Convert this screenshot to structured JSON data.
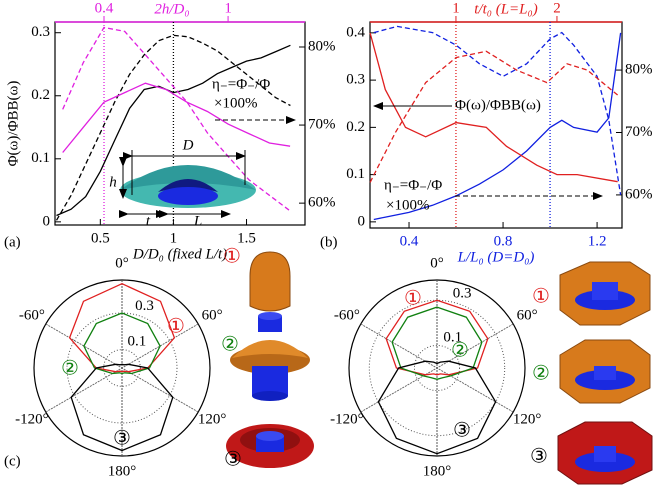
{
  "chart_data": [
    {
      "type": "line",
      "panel_label": "(a)",
      "xlabel": "D/D₀ (fixed L/t)",
      "x2label": "2h/D₀",
      "ylabel": "Φ(ω)/ΦBB(ω)",
      "x2_color": "#e020e0",
      "xlabel_color": "#000000",
      "xlim": [
        0.19,
        1.9
      ],
      "x2lim": [
        0.163,
        1.372
      ],
      "ylim": [
        -0.005,
        0.317
      ],
      "y2lim": [
        57.2,
        83.2
      ],
      "xticks": [
        0.5,
        1,
        1.5
      ],
      "x2ticks": [
        0.4,
        1
      ],
      "yticks": [
        0,
        0.1,
        0.2,
        0.3
      ],
      "y2ticks": [
        {
          "value": 60,
          "label": "60%"
        },
        {
          "value": 70,
          "label": "70%"
        },
        {
          "value": 80,
          "label": "80%"
        }
      ],
      "series": [
        {
          "color": "#000000",
          "style": "solid",
          "axis": "y",
          "xaxis": "x",
          "x": [
            0.2,
            0.3,
            0.4,
            0.5,
            0.6,
            0.7,
            0.8,
            0.9,
            1.0,
            1.1,
            1.2,
            1.3,
            1.4,
            1.5,
            1.6,
            1.7,
            1.8
          ],
          "values": [
            0.01,
            0.02,
            0.04,
            0.08,
            0.13,
            0.18,
            0.21,
            0.215,
            0.205,
            0.21,
            0.22,
            0.235,
            0.245,
            0.255,
            0.26,
            0.27,
            0.28
          ]
        },
        {
          "color": "#000000",
          "style": "dashed",
          "axis": "y2",
          "xaxis": "x",
          "x": [
            0.2,
            0.3,
            0.4,
            0.5,
            0.6,
            0.7,
            0.8,
            0.9,
            1.0,
            1.1,
            1.2,
            1.3,
            1.4,
            1.5,
            1.6,
            1.7,
            1.8
          ],
          "values": [
            57.8,
            61,
            65,
            69,
            73,
            76.5,
            79,
            80.8,
            81.5,
            81.3,
            80.5,
            79.5,
            78,
            76.5,
            75,
            73.5,
            72.5
          ]
        },
        {
          "color": "#e020e0",
          "style": "solid",
          "axis": "y",
          "xaxis": "x2",
          "x": [
            0.2,
            0.3,
            0.4,
            0.5,
            0.6,
            0.7,
            0.8,
            0.9,
            1.0,
            1.1,
            1.2,
            1.3
          ],
          "values": [
            0.11,
            0.15,
            0.19,
            0.205,
            0.22,
            0.21,
            0.19,
            0.175,
            0.155,
            0.14,
            0.125,
            0.12
          ]
        },
        {
          "color": "#e020e0",
          "style": "dashed",
          "axis": "y2",
          "xaxis": "x2",
          "x": [
            0.2,
            0.3,
            0.4,
            0.5,
            0.6,
            0.7,
            0.8,
            0.9,
            1.0,
            1.1,
            1.2,
            1.3
          ],
          "values": [
            72,
            78,
            82.5,
            82,
            79,
            76,
            73,
            69,
            66,
            63,
            61,
            59
          ]
        }
      ],
      "reference_lines": [
        {
          "axis": "x",
          "value": 1,
          "color": "#000000"
        },
        {
          "axis": "x2",
          "value": 0.4,
          "color": "#e020e0"
        }
      ],
      "annotations": [
        "η₋=Φ₋/Φ",
        "×100%"
      ],
      "inset_labels": [
        "D",
        "h",
        "t",
        "L"
      ]
    },
    {
      "type": "line",
      "panel_label": "(b)",
      "xlabel": "L/L₀ (D=D₀)",
      "x2label": "t/t₀ (L=L₀)",
      "x2_color": "#e02020",
      "xlabel_color": "#1020e0",
      "xlim": [
        0.234,
        1.306
      ],
      "x2lim": [
        0.149,
        2.644
      ],
      "ylim": [
        -0.013,
        0.423
      ],
      "y2lim": [
        54.7,
        87.7
      ],
      "xticks": [
        0.4,
        0.8,
        1.2
      ],
      "x2ticks": [
        1,
        2
      ],
      "yticks": [
        0,
        0.1,
        0.2,
        0.3,
        0.4
      ],
      "y2ticks": [
        {
          "value": 60,
          "label": "60%"
        },
        {
          "value": 70,
          "label": "70%"
        },
        {
          "value": 80,
          "label": "80%"
        }
      ],
      "series": [
        {
          "color": "#1020e0",
          "style": "solid",
          "axis": "y",
          "xaxis": "x",
          "x": [
            0.25,
            0.3,
            0.4,
            0.5,
            0.6,
            0.7,
            0.8,
            0.9,
            1.0,
            1.05,
            1.1,
            1.2,
            1.25,
            1.3
          ],
          "values": [
            0.005,
            0.01,
            0.02,
            0.035,
            0.055,
            0.08,
            0.11,
            0.15,
            0.2,
            0.215,
            0.2,
            0.19,
            0.22,
            0.4
          ]
        },
        {
          "color": "#1020e0",
          "style": "dashed",
          "axis": "y2",
          "xaxis": "x",
          "x": [
            0.25,
            0.35,
            0.5,
            0.6,
            0.7,
            0.8,
            0.9,
            1.0,
            1.05,
            1.1,
            1.2,
            1.25,
            1.3
          ],
          "values": [
            86,
            87,
            86,
            84,
            81,
            79,
            81,
            85,
            86,
            84,
            79,
            72,
            60
          ]
        },
        {
          "color": "#e02020",
          "style": "solid",
          "axis": "y",
          "xaxis": "x2",
          "x": [
            0.15,
            0.3,
            0.5,
            0.7,
            1.0,
            1.3,
            1.5,
            1.8,
            2.0,
            2.2,
            2.6
          ],
          "values": [
            0.4,
            0.28,
            0.2,
            0.18,
            0.21,
            0.2,
            0.16,
            0.12,
            0.1,
            0.1,
            0.085
          ]
        },
        {
          "color": "#e02020",
          "style": "dashed",
          "axis": "y2",
          "xaxis": "x2",
          "x": [
            0.15,
            0.4,
            0.7,
            1.0,
            1.3,
            1.6,
            1.9,
            2.1,
            2.3,
            2.6
          ],
          "values": [
            62,
            70,
            78,
            82,
            83,
            80,
            78,
            81,
            80,
            76
          ]
        }
      ],
      "reference_lines": [
        {
          "axis": "x2",
          "value": 1,
          "color": "#e02020"
        },
        {
          "axis": "x",
          "value": 1,
          "color": "#1020e0"
        }
      ],
      "annotations": [
        "Φ(ω)/ΦBB(ω)",
        "η₋=Φ₋/Φ",
        "×100%"
      ]
    },
    {
      "type": "polar",
      "panel_label": "(c)",
      "rlim": [
        0,
        0.48
      ],
      "rticks": [
        0.1,
        0.3
      ],
      "thetaticks": [
        {
          "value": 0,
          "label": "0°"
        },
        {
          "value": 60,
          "label": "60°"
        },
        {
          "value": 120,
          "label": "120°"
        },
        {
          "value": 180,
          "label": "180°"
        },
        {
          "value": -120,
          "label": "-120°"
        },
        {
          "value": -60,
          "label": "-60°"
        }
      ],
      "theta": [
        0,
        30,
        60,
        90,
        120,
        150,
        180,
        210,
        240,
        270,
        300,
        330
      ],
      "series": [
        {
          "name": "①",
          "color": "#e02020",
          "values": [
            0.46,
            0.42,
            0.33,
            0.14,
            0.04,
            0.02,
            0.02,
            0.02,
            0.04,
            0.14,
            0.33,
            0.42
          ]
        },
        {
          "name": "②",
          "color": "#108010",
          "values": [
            0.3,
            0.28,
            0.24,
            0.15,
            0.06,
            0.03,
            0.03,
            0.03,
            0.06,
            0.15,
            0.24,
            0.28
          ]
        },
        {
          "name": "③",
          "color": "#000000",
          "values": [
            0.02,
            0.02,
            0.04,
            0.14,
            0.32,
            0.42,
            0.45,
            0.42,
            0.32,
            0.14,
            0.04,
            0.02
          ]
        }
      ],
      "render_labels": [
        "①",
        "②",
        "③"
      ]
    },
    {
      "type": "polar",
      "rlim": [
        0,
        0.39
      ],
      "rticks": [
        0.1,
        0.3
      ],
      "thetaticks": [
        {
          "value": 0,
          "label": "0°"
        },
        {
          "value": 60,
          "label": "60°"
        },
        {
          "value": 120,
          "label": "120°"
        },
        {
          "value": 180,
          "label": "180°"
        },
        {
          "value": -120,
          "label": "-120°"
        },
        {
          "value": -60,
          "label": "-60°"
        }
      ],
      "theta": [
        0,
        30,
        60,
        90,
        120,
        150,
        180,
        210,
        240,
        270,
        300,
        330
      ],
      "series": [
        {
          "name": "①",
          "color": "#e02020",
          "values": [
            0.3,
            0.29,
            0.26,
            0.18,
            0.06,
            0.03,
            0.03,
            0.03,
            0.06,
            0.18,
            0.26,
            0.29
          ]
        },
        {
          "name": "②",
          "color": "#108010",
          "values": [
            0.27,
            0.26,
            0.23,
            0.16,
            0.07,
            0.05,
            0.05,
            0.05,
            0.07,
            0.16,
            0.23,
            0.26
          ]
        },
        {
          "name": "③",
          "color": "#000000",
          "values": [
            0.02,
            0.03,
            0.06,
            0.17,
            0.3,
            0.36,
            0.38,
            0.36,
            0.3,
            0.17,
            0.06,
            0.03
          ]
        }
      ],
      "render_labels": [
        "①",
        "②",
        "③"
      ]
    }
  ]
}
